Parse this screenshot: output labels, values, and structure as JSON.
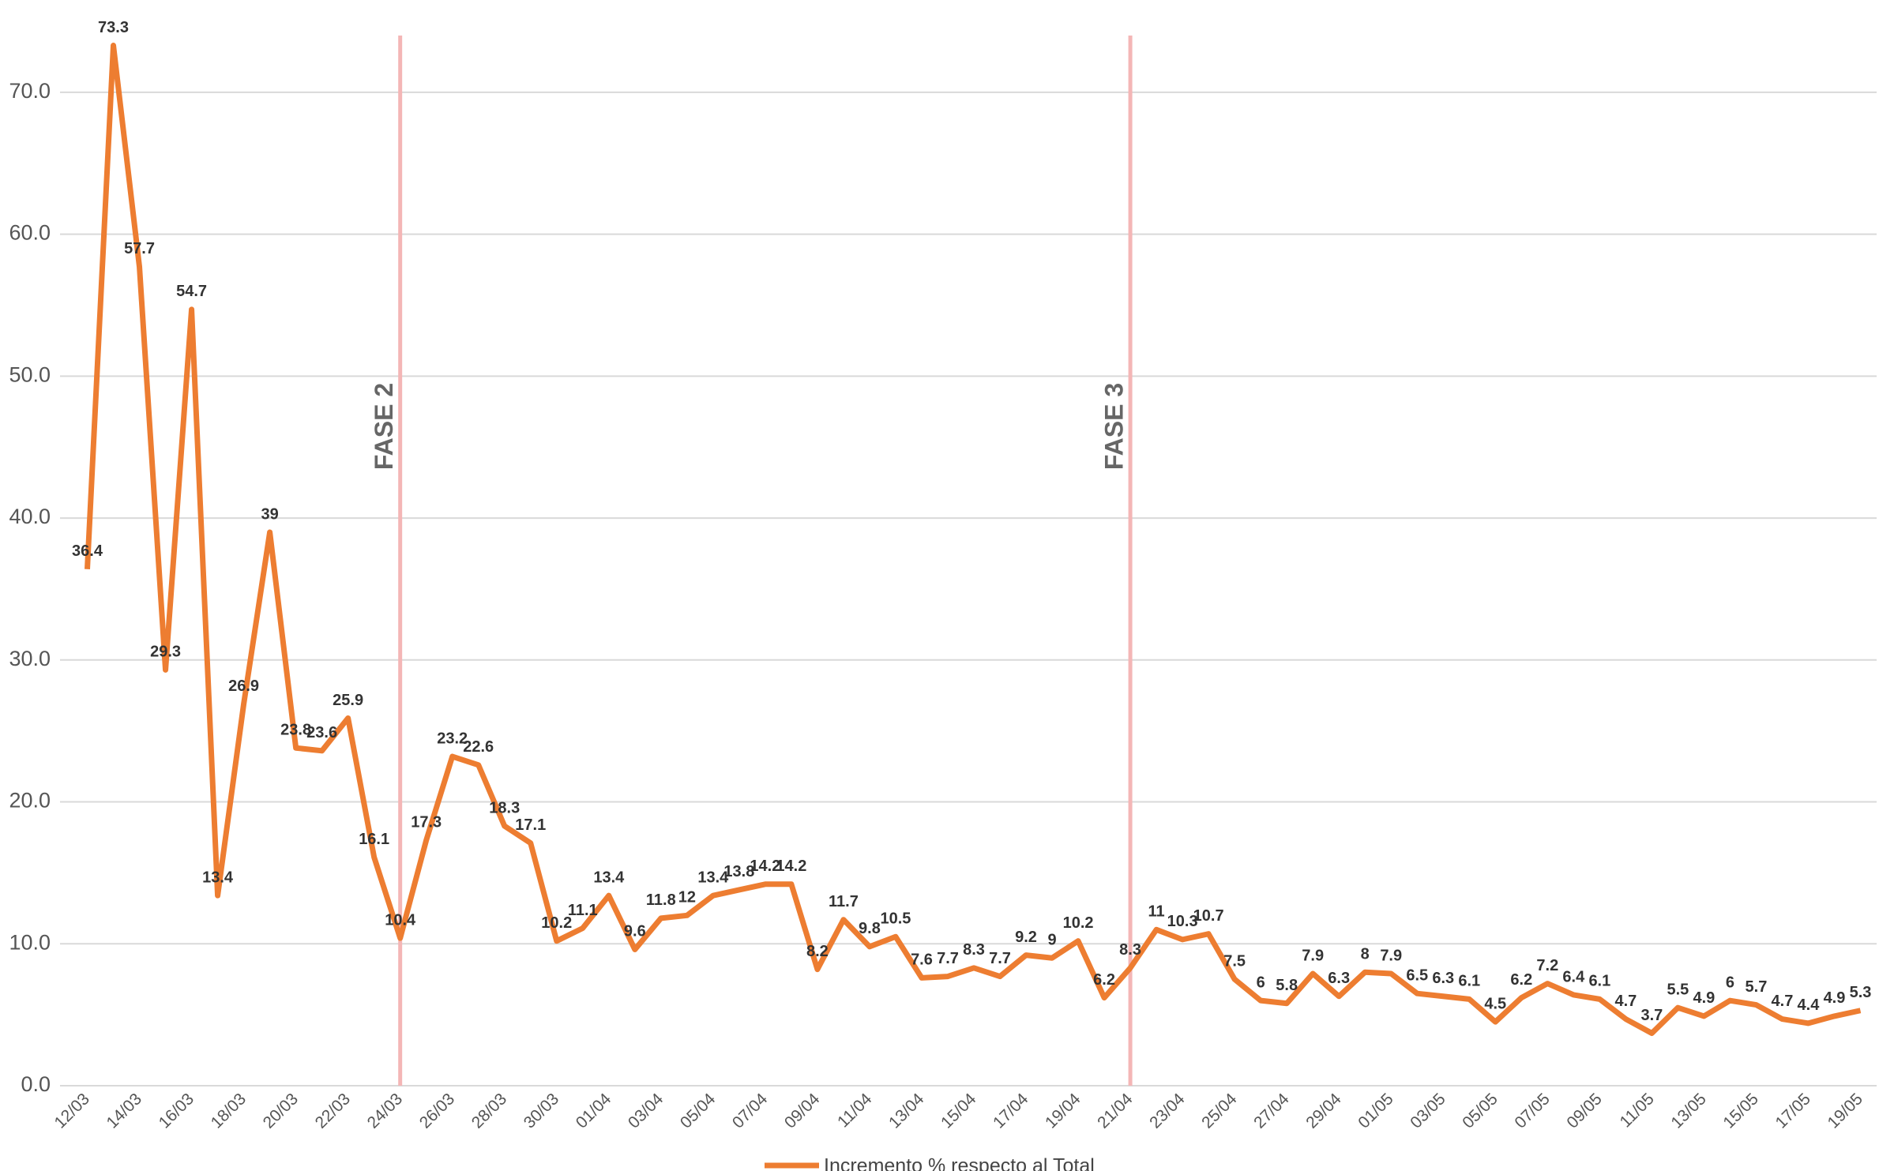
{
  "chart_data": {
    "type": "line",
    "categories": [
      "12/03",
      null,
      "14/03",
      null,
      "16/03",
      null,
      "18/03",
      null,
      "20/03",
      null,
      "22/03",
      null,
      "24/03",
      null,
      "26/03",
      null,
      "28/03",
      null,
      "30/03",
      null,
      "01/04",
      null,
      "03/04",
      null,
      "05/04",
      null,
      "07/04",
      null,
      "09/04",
      null,
      "11/04",
      null,
      "13/04",
      null,
      "15/04",
      null,
      "17/04",
      null,
      "19/04",
      null,
      "21/04",
      null,
      "23/04",
      null,
      "25/04",
      null,
      "27/04",
      null,
      "29/04",
      null,
      "01/05",
      null,
      "03/05",
      null,
      "05/05",
      null,
      "07/05",
      null,
      "09/05",
      null,
      "11/05",
      null,
      "13/05",
      null,
      "15/05",
      null,
      "17/05",
      null,
      "19/05"
    ],
    "series": [
      {
        "name": "Incremento % respecto al Total",
        "color": "#ed7d31",
        "values": [
          36.4,
          73.3,
          57.7,
          29.3,
          54.7,
          13.4,
          26.9,
          39.0,
          23.8,
          23.6,
          25.9,
          16.1,
          10.4,
          17.3,
          23.2,
          22.6,
          18.3,
          17.1,
          10.2,
          11.1,
          13.4,
          9.6,
          11.8,
          12.0,
          13.4,
          13.8,
          14.2,
          14.2,
          8.2,
          11.7,
          9.8,
          10.5,
          7.6,
          7.7,
          8.3,
          7.7,
          9.2,
          9.0,
          10.2,
          6.2,
          8.3,
          11.0,
          10.3,
          10.7,
          7.5,
          6.0,
          5.8,
          7.9,
          6.3,
          8.0,
          7.9,
          6.5,
          6.3,
          6.1,
          4.5,
          6.2,
          7.2,
          6.4,
          6.1,
          4.7,
          3.7,
          5.5,
          4.9,
          6.0,
          5.7,
          4.7,
          4.4,
          4.9,
          5.3
        ]
      }
    ],
    "ylim": [
      0,
      75
    ],
    "yticks": [
      {
        "value": 0,
        "label": "0.0"
      },
      {
        "value": 10,
        "label": "10.0"
      },
      {
        "value": 20,
        "label": "20.0"
      },
      {
        "value": 30,
        "label": "30.0"
      },
      {
        "value": 40,
        "label": "40.0"
      },
      {
        "value": 50,
        "label": "50.0"
      },
      {
        "value": 60,
        "label": "60.0"
      },
      {
        "value": 70,
        "label": "70.0"
      }
    ],
    "grid": true,
    "legend": "bottom",
    "annotations": [
      {
        "text": "FASE 2",
        "x": "24/03"
      },
      {
        "text": "FASE 3",
        "x": "21/04"
      }
    ],
    "annotation_color": "#f4b6b6"
  }
}
